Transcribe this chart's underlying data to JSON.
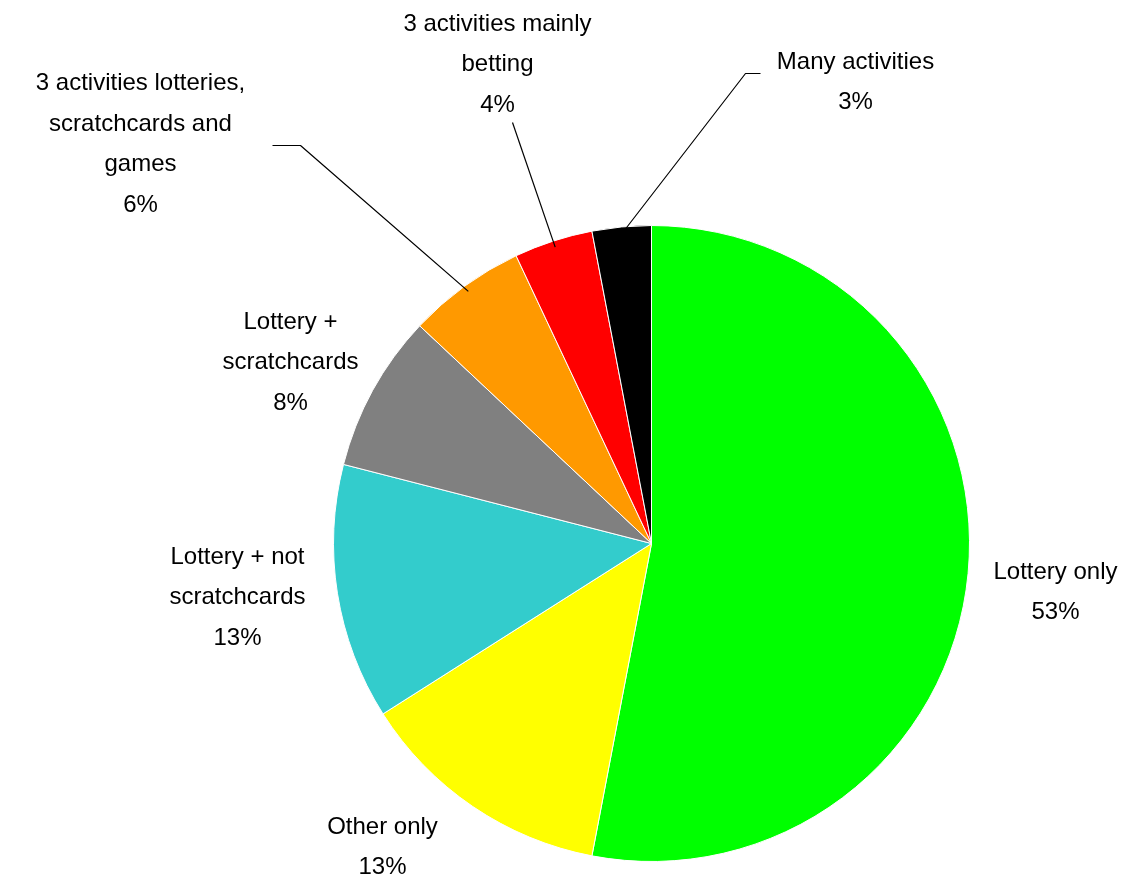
{
  "chart_data": {
    "type": "pie",
    "categories": [
      "Lottery only",
      "Other only",
      "Lottery + not\nscratchcards",
      "Lottery +\nscratchcards",
      "3 activities lotteries,\nscratchcards and\ngames",
      "3 activities mainly\nbetting",
      "Many activities"
    ],
    "values": [
      53,
      13,
      13,
      8,
      6,
      4,
      3
    ],
    "value_labels": [
      "53%",
      "13%",
      "13%",
      "8%",
      "6%",
      "4%",
      "3%"
    ],
    "colors": [
      "#00ff00",
      "#ffff00",
      "#33cccc",
      "#808080",
      "#ff9900",
      "#ff0000",
      "#000000"
    ]
  }
}
